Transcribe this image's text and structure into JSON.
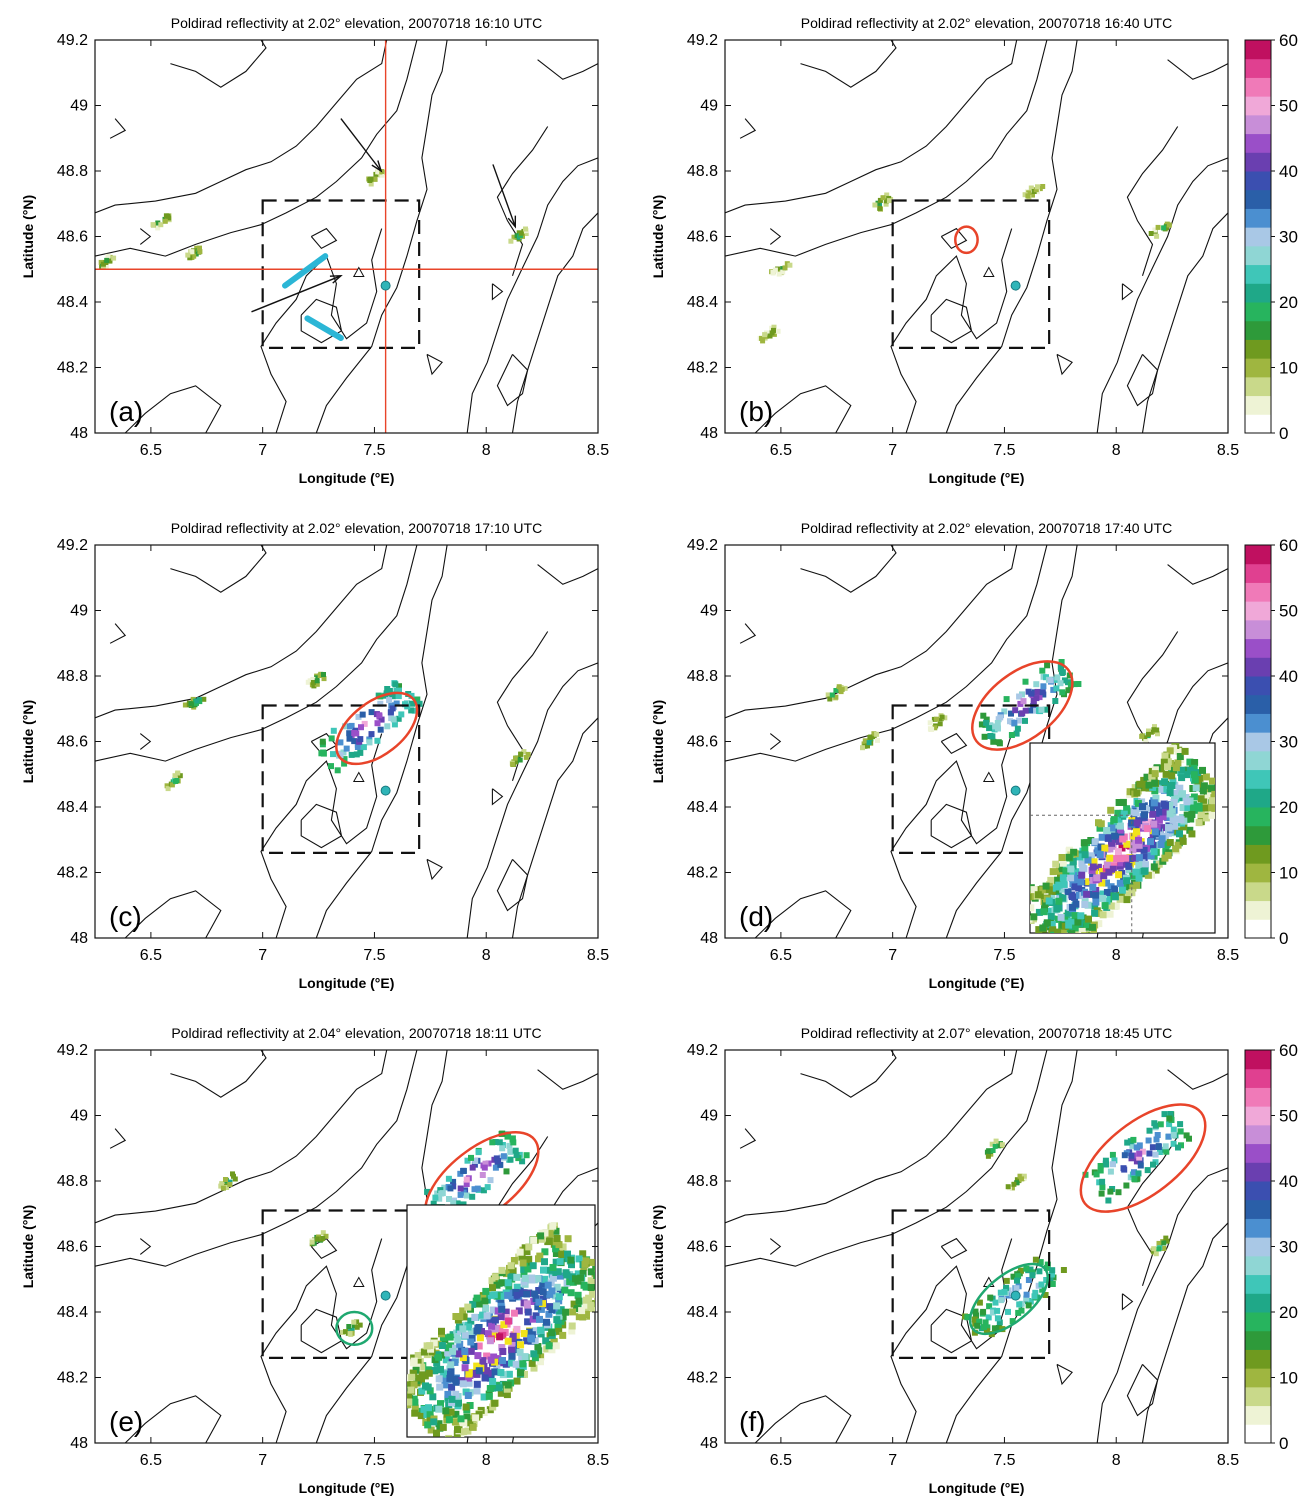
{
  "figure": {
    "xlabel": "Longitude (°E)",
    "ylabel": "Latitude (°N)"
  },
  "colorbar": {
    "ticks": [
      0,
      10,
      20,
      30,
      40,
      50,
      60
    ],
    "colors": [
      "#ffffff",
      "#eef3d5",
      "#c9d98a",
      "#9fb640",
      "#6f9a1f",
      "#2e9a3a",
      "#27b45e",
      "#1fa888",
      "#3fc6b8",
      "#8fd6d4",
      "#a9c8e6",
      "#4b8fd0",
      "#2a5fa8",
      "#3b4fb0",
      "#6a3fb0",
      "#9a4fc8",
      "#c88ed8",
      "#f0a8d8",
      "#f07ab8",
      "#e04090",
      "#c01060"
    ]
  },
  "chart_data": [
    {
      "type": "heatmap",
      "panel": "(a)",
      "title": "Poldirad reflectivity at 2.02° elevation, 20070718 16:10 UTC",
      "xlim": [
        6.25,
        8.5
      ],
      "ylim": [
        48.0,
        49.2
      ],
      "xticks": [
        6.5,
        7,
        7.5,
        8,
        8.5
      ],
      "yticks": [
        48,
        48.2,
        48.4,
        48.6,
        48.8,
        49,
        49.2
      ],
      "study_box": {
        "lon": [
          7.0,
          7.7
        ],
        "lat": [
          48.26,
          48.71
        ]
      },
      "radar_site": {
        "lon": 7.55,
        "lat": 48.45
      },
      "crosshair": {
        "lon": 7.55,
        "lat": 48.5
      },
      "echoes": [
        {
          "lon": 7.5,
          "lat": 48.78,
          "peak_dbz": 15
        },
        {
          "lon": 8.15,
          "lat": 48.6,
          "peak_dbz": 20
        },
        {
          "lon": 6.55,
          "lat": 48.65,
          "peak_dbz": 20
        },
        {
          "lon": 6.7,
          "lat": 48.55,
          "peak_dbz": 15
        },
        {
          "lon": 6.3,
          "lat": 48.52,
          "peak_dbz": 15
        }
      ],
      "arrows": [
        {
          "from": [
            7.35,
            48.96
          ],
          "to": [
            7.53,
            48.8
          ]
        },
        {
          "from": [
            8.03,
            48.82
          ],
          "to": [
            8.13,
            48.63
          ]
        },
        {
          "from": [
            6.95,
            48.37
          ],
          "to": [
            7.35,
            48.48
          ]
        }
      ],
      "shear_lines": [
        {
          "from": [
            7.1,
            48.45
          ],
          "to": [
            7.28,
            48.54
          ]
        },
        {
          "from": [
            7.2,
            48.35
          ],
          "to": [
            7.35,
            48.29
          ]
        }
      ],
      "circles": []
    },
    {
      "type": "heatmap",
      "panel": "(b)",
      "title": "Poldirad reflectivity at 2.02° elevation, 20070718 16:40 UTC",
      "xlim": [
        6.25,
        8.5
      ],
      "ylim": [
        48.0,
        49.2
      ],
      "xticks": [
        6.5,
        7,
        7.5,
        8,
        8.5
      ],
      "yticks": [
        48,
        48.2,
        48.4,
        48.6,
        48.8,
        49,
        49.2
      ],
      "study_box": {
        "lon": [
          7.0,
          7.7
        ],
        "lat": [
          48.26,
          48.71
        ]
      },
      "radar_site": {
        "lon": 7.55,
        "lat": 48.45
      },
      "echoes": [
        {
          "lon": 6.95,
          "lat": 48.7,
          "peak_dbz": 20
        },
        {
          "lon": 7.63,
          "lat": 48.74,
          "peak_dbz": 15
        },
        {
          "lon": 8.2,
          "lat": 48.62,
          "peak_dbz": 20
        },
        {
          "lon": 6.5,
          "lat": 48.5,
          "peak_dbz": 15
        },
        {
          "lon": 6.45,
          "lat": 48.3,
          "peak_dbz": 15
        }
      ],
      "circles": [
        {
          "lon": 7.33,
          "lat": 48.59,
          "rx": 0.05,
          "ry": 0.04,
          "angle": 0,
          "color": "#e8442a"
        }
      ]
    },
    {
      "type": "heatmap",
      "panel": "(c)",
      "title": "Poldirad reflectivity at 2.02° elevation, 20070718 17:10 UTC",
      "xlim": [
        6.25,
        8.5
      ],
      "ylim": [
        48.0,
        49.2
      ],
      "xticks": [
        6.5,
        7,
        7.5,
        8,
        8.5
      ],
      "yticks": [
        48,
        48.2,
        48.4,
        48.6,
        48.8,
        49,
        49.2
      ],
      "study_box": {
        "lon": [
          7.0,
          7.7
        ],
        "lat": [
          48.26,
          48.71
        ]
      },
      "radar_site": {
        "lon": 7.55,
        "lat": 48.45
      },
      "echoes": [
        {
          "lon": 7.47,
          "lat": 48.65,
          "peak_dbz": 55
        },
        {
          "lon": 6.7,
          "lat": 48.72,
          "peak_dbz": 25
        },
        {
          "lon": 6.6,
          "lat": 48.48,
          "peak_dbz": 25
        },
        {
          "lon": 7.25,
          "lat": 48.79,
          "peak_dbz": 20
        },
        {
          "lon": 8.15,
          "lat": 48.55,
          "peak_dbz": 20
        }
      ],
      "circles": [
        {
          "lon": 7.51,
          "lat": 48.64,
          "rx": 0.21,
          "ry": 0.08,
          "angle": -38,
          "color": "#e8442a"
        }
      ]
    },
    {
      "type": "heatmap",
      "panel": "(d)",
      "title": "Poldirad reflectivity at 2.02° elevation, 20070718 17:40 UTC",
      "xlim": [
        6.25,
        8.5
      ],
      "ylim": [
        48.0,
        49.2
      ],
      "xticks": [
        6.5,
        7,
        7.5,
        8,
        8.5
      ],
      "yticks": [
        48,
        48.2,
        48.4,
        48.6,
        48.8,
        49,
        49.2
      ],
      "study_box": {
        "lon": [
          7.0,
          7.7
        ],
        "lat": [
          48.26,
          48.71
        ]
      },
      "radar_site": {
        "lon": 7.55,
        "lat": 48.45
      },
      "echoes": [
        {
          "lon": 7.6,
          "lat": 48.72,
          "peak_dbz": 50
        },
        {
          "lon": 6.75,
          "lat": 48.75,
          "peak_dbz": 20
        },
        {
          "lon": 6.9,
          "lat": 48.6,
          "peak_dbz": 20
        },
        {
          "lon": 7.2,
          "lat": 48.66,
          "peak_dbz": 20
        },
        {
          "lon": 8.15,
          "lat": 48.62,
          "peak_dbz": 20
        }
      ],
      "circles": [
        {
          "lon": 7.58,
          "lat": 48.71,
          "rx": 0.26,
          "ry": 0.1,
          "angle": -38,
          "color": "#e8442a"
        }
      ],
      "inset": true
    },
    {
      "type": "heatmap",
      "panel": "(e)",
      "title": "Poldirad reflectivity at 2.04° elevation, 20070718 18:11 UTC",
      "xlim": [
        6.25,
        8.5
      ],
      "ylim": [
        48.0,
        49.2
      ],
      "xticks": [
        6.5,
        7,
        7.5,
        8,
        8.5
      ],
      "yticks": [
        48,
        48.2,
        48.4,
        48.6,
        48.8,
        49,
        49.2
      ],
      "study_box": {
        "lon": [
          7.0,
          7.7
        ],
        "lat": [
          48.26,
          48.71
        ]
      },
      "radar_site": {
        "lon": 7.55,
        "lat": 48.45
      },
      "echoes": [
        {
          "lon": 7.95,
          "lat": 48.82,
          "peak_dbz": 55
        },
        {
          "lon": 6.85,
          "lat": 48.8,
          "peak_dbz": 25
        },
        {
          "lon": 7.25,
          "lat": 48.62,
          "peak_dbz": 20
        },
        {
          "lon": 7.4,
          "lat": 48.35,
          "peak_dbz": 25
        }
      ],
      "circles": [
        {
          "lon": 7.98,
          "lat": 48.8,
          "rx": 0.3,
          "ry": 0.1,
          "angle": -38,
          "color": "#e8442a"
        },
        {
          "lon": 7.41,
          "lat": 48.35,
          "rx": 0.08,
          "ry": 0.05,
          "angle": 0,
          "color": "#1fa870"
        }
      ],
      "inset": true
    },
    {
      "type": "heatmap",
      "panel": "(f)",
      "title": "Poldirad reflectivity at 2.07° elevation, 20070718 18:45 UTC",
      "xlim": [
        6.25,
        8.5
      ],
      "ylim": [
        48.0,
        49.2
      ],
      "xticks": [
        6.5,
        7,
        7.5,
        8,
        8.5
      ],
      "yticks": [
        48,
        48.2,
        48.4,
        48.6,
        48.8,
        49,
        49.2
      ],
      "study_box": {
        "lon": [
          7.0,
          7.7
        ],
        "lat": [
          48.26,
          48.71
        ]
      },
      "radar_site": {
        "lon": 7.55,
        "lat": 48.45
      },
      "echoes": [
        {
          "lon": 8.1,
          "lat": 48.88,
          "peak_dbz": 50
        },
        {
          "lon": 7.55,
          "lat": 48.45,
          "peak_dbz": 40
        },
        {
          "lon": 7.45,
          "lat": 48.9,
          "peak_dbz": 25
        },
        {
          "lon": 7.55,
          "lat": 48.8,
          "peak_dbz": 20
        },
        {
          "lon": 8.2,
          "lat": 48.6,
          "peak_dbz": 25
        }
      ],
      "circles": [
        {
          "lon": 8.12,
          "lat": 48.87,
          "rx": 0.33,
          "ry": 0.11,
          "angle": -38,
          "color": "#e8442a"
        },
        {
          "lon": 7.52,
          "lat": 48.44,
          "rx": 0.21,
          "ry": 0.07,
          "angle": -40,
          "color": "#1fa870"
        }
      ]
    }
  ]
}
